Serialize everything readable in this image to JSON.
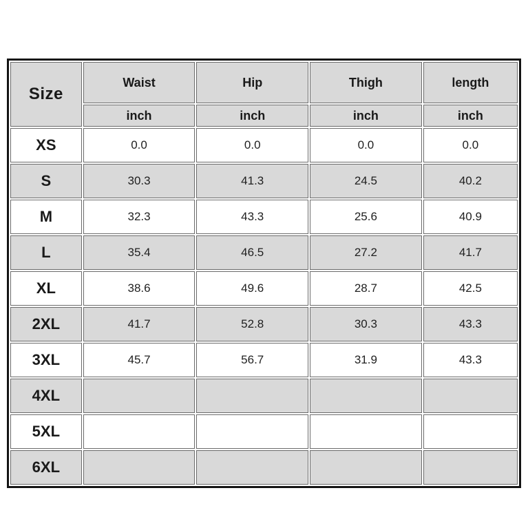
{
  "colors": {
    "background": "#ffffff",
    "header_fill": "#d9d9d9",
    "alt_row_fill": "#d9d9d9",
    "cell_border": "#6b6b6b",
    "outer_border": "#141414",
    "text": "#1a1a1a"
  },
  "chart_data": {
    "type": "table",
    "columns": [
      "Size",
      "Waist",
      "Hip",
      "Thigh",
      "length"
    ],
    "units": [
      "inch",
      "inch",
      "inch",
      "inch"
    ],
    "rows": [
      {
        "size": "XS",
        "waist": "0.0",
        "hip": "0.0",
        "thigh": "0.0",
        "length": "0.0"
      },
      {
        "size": "S",
        "waist": "30.3",
        "hip": "41.3",
        "thigh": "24.5",
        "length": "40.2"
      },
      {
        "size": "M",
        "waist": "32.3",
        "hip": "43.3",
        "thigh": "25.6",
        "length": "40.9"
      },
      {
        "size": "L",
        "waist": "35.4",
        "hip": "46.5",
        "thigh": "27.2",
        "length": "41.7"
      },
      {
        "size": "XL",
        "waist": "38.6",
        "hip": "49.6",
        "thigh": "28.7",
        "length": "42.5"
      },
      {
        "size": "2XL",
        "waist": "41.7",
        "hip": "52.8",
        "thigh": "30.3",
        "length": "43.3"
      },
      {
        "size": "3XL",
        "waist": "45.7",
        "hip": "56.7",
        "thigh": "31.9",
        "length": "43.3"
      },
      {
        "size": "4XL",
        "waist": "",
        "hip": "",
        "thigh": "",
        "length": ""
      },
      {
        "size": "5XL",
        "waist": "",
        "hip": "",
        "thigh": "",
        "length": ""
      },
      {
        "size": "6XL",
        "waist": "",
        "hip": "",
        "thigh": "",
        "length": ""
      }
    ]
  }
}
